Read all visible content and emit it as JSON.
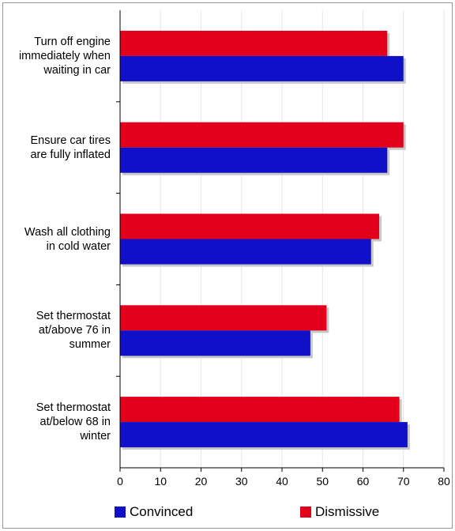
{
  "chart_data": {
    "type": "bar",
    "orientation": "horizontal",
    "categories": [
      "Turn off engine\nimmediately when\nwaiting in car",
      "Ensure car tires\nare fully inflated",
      "Wash all clothing\nin cold water",
      "Set thermostat\nat/above 76 in\nsummer",
      "Set thermostat\nat/below 68 in\nwinter"
    ],
    "series": [
      {
        "name": "Dismissive",
        "color": "#e2001a",
        "values": [
          66,
          70,
          64,
          51,
          69
        ]
      },
      {
        "name": "Convinced",
        "color": "#1010c8",
        "values": [
          70,
          66,
          62,
          47,
          71
        ]
      }
    ],
    "xlim": [
      0,
      80
    ],
    "xticks": [
      "0",
      "10",
      "20",
      "30",
      "40",
      "50",
      "60",
      "70",
      "80"
    ],
    "grid": true,
    "legend_position": "bottom",
    "legend": [
      {
        "name": "Convinced",
        "color": "#1010c8"
      },
      {
        "name": "Dismissive",
        "color": "#e2001a"
      }
    ]
  }
}
